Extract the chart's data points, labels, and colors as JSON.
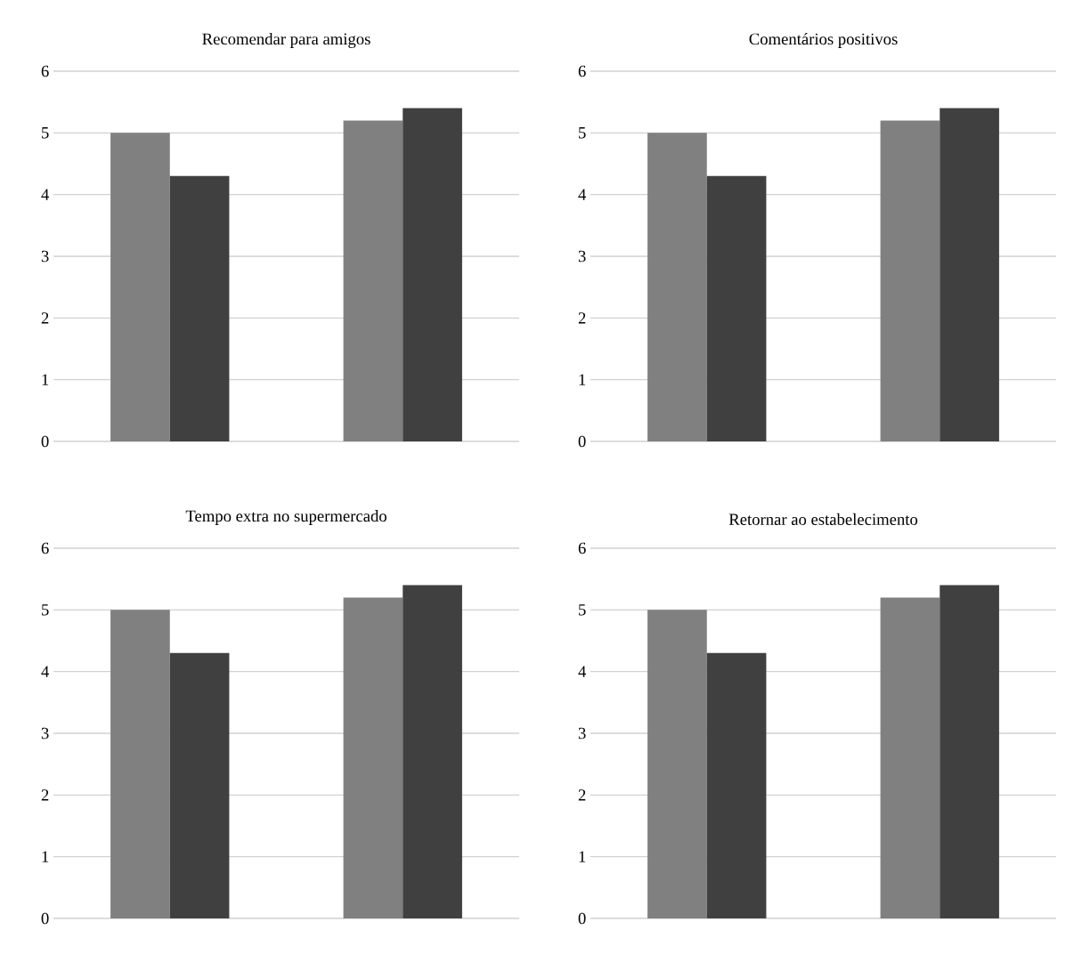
{
  "chart_data": [
    {
      "type": "bar",
      "title": "Recomendar para amigos",
      "categories": [
        null,
        null
      ],
      "ylim": [
        0,
        6
      ],
      "yticks": [
        0,
        1,
        2,
        3,
        4,
        5,
        6
      ],
      "grid": "y",
      "series": [
        {
          "color": "#808080",
          "values": [
            5.0,
            5.2
          ]
        },
        {
          "color": "#404040",
          "values": [
            4.3,
            5.4
          ]
        }
      ]
    },
    {
      "type": "bar",
      "title": "Comentários positivos",
      "categories": [
        null,
        null
      ],
      "ylim": [
        0,
        6
      ],
      "yticks": [
        0,
        1,
        2,
        3,
        4,
        5,
        6
      ],
      "grid": "y",
      "series": [
        {
          "color": "#808080",
          "values": [
            5.0,
            5.2
          ]
        },
        {
          "color": "#404040",
          "values": [
            4.3,
            5.4
          ]
        }
      ]
    },
    {
      "type": "bar",
      "title": "Tempo extra no supermercado",
      "categories": [
        null,
        null
      ],
      "ylim": [
        0,
        6
      ],
      "yticks": [
        0,
        1,
        2,
        3,
        4,
        5,
        6
      ],
      "grid": "y",
      "series": [
        {
          "color": "#808080",
          "values": [
            5.0,
            5.2
          ]
        },
        {
          "color": "#404040",
          "values": [
            4.3,
            5.4
          ]
        }
      ]
    },
    {
      "type": "bar",
      "title": "Retornar ao estabelecimento",
      "categories": [
        null,
        null
      ],
      "ylim": [
        0,
        6
      ],
      "yticks": [
        0,
        1,
        2,
        3,
        4,
        5,
        6
      ],
      "grid": "y",
      "series": [
        {
          "color": "#808080",
          "values": [
            5.0,
            5.2
          ]
        },
        {
          "color": "#404040",
          "values": [
            4.3,
            5.4
          ]
        }
      ]
    }
  ]
}
